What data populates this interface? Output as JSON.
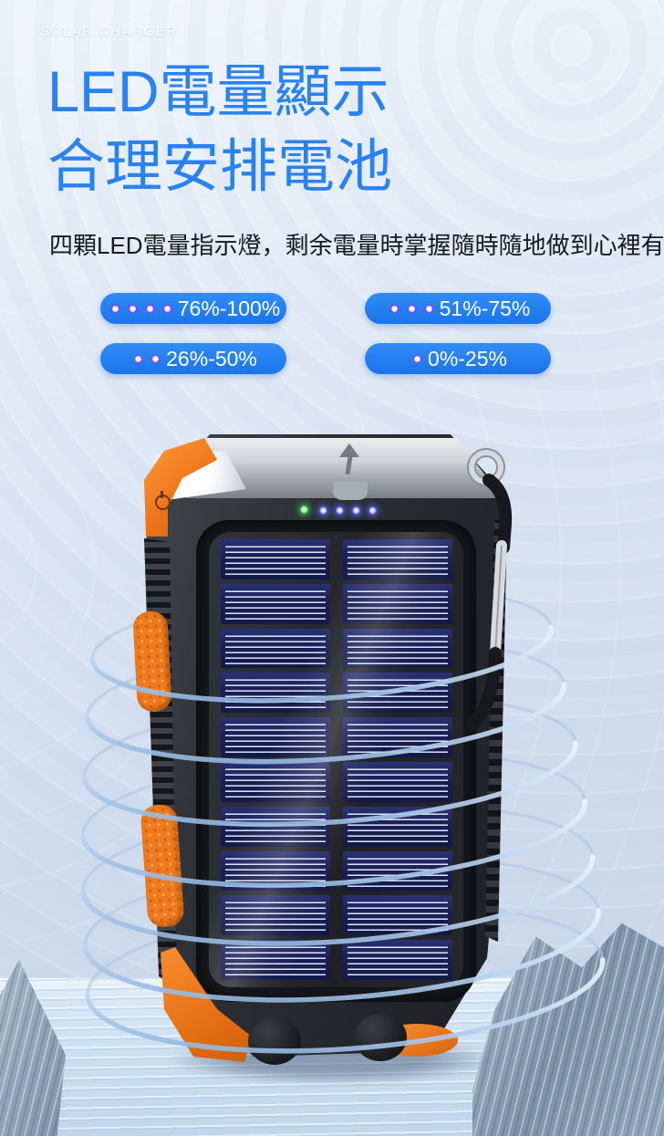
{
  "header": {
    "brand": "SOLAR CHARGER",
    "title_line1": "LED電量顯示",
    "title_line2": "合理安排電池",
    "description": "四顆LED電量指示燈，剩余電量時掌握隨時隨地做到心裡有數",
    "title_color": "#2a82f0",
    "brand_color": "#fbfdff",
    "description_color": "#17191d"
  },
  "badges": [
    {
      "label": "76%-100%",
      "dots": 4
    },
    {
      "label": "51%-75%",
      "dots": 3
    },
    {
      "label": "26%-50%",
      "dots": 2
    },
    {
      "label": "0%-25%",
      "dots": 1
    }
  ],
  "badge_style": {
    "bg": "#1e7cf2",
    "text": "#ffffff",
    "dot_core": "#ffffff",
    "dot_ring": "#7c3aed"
  },
  "product": {
    "name": "solar-power-bank",
    "accent_orange": "#ef7a1f",
    "body_color": "#26292e",
    "panel_cell_color": "#1a2056",
    "ring_color": "#9cc0e6",
    "status_leds": {
      "green_count": 1,
      "blue_count": 4,
      "green_color": "#3ecf5e",
      "blue_color": "#5964f2"
    },
    "panel": {
      "columns": 2,
      "rows": 10,
      "cells": 20
    },
    "icons": {
      "power_icon": "power-symbol",
      "up_arrow_icon": "up-arrow",
      "carabiner": "carabiner-clip"
    }
  }
}
